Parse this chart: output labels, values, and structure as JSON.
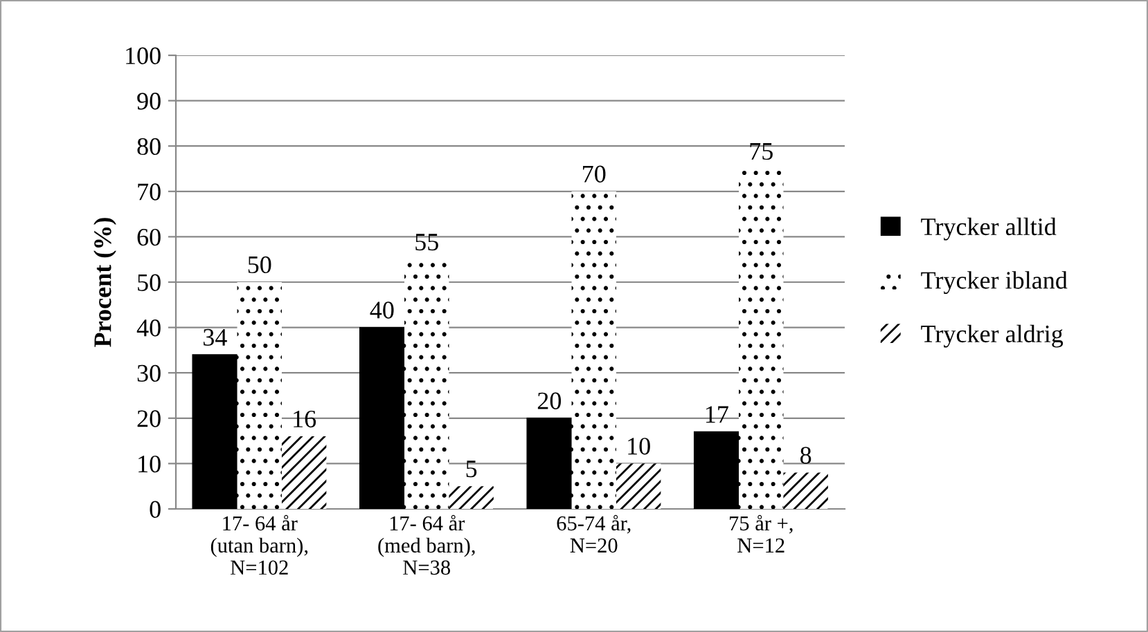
{
  "chart_data": {
    "type": "bar",
    "ylabel": "Procent (%)",
    "categories": [
      "17- 64 år\n(utan barn),\nN=102",
      "17- 64 år\n(med barn),\nN=38",
      "65-74 år,\nN=20",
      "75 år +,\nN=12"
    ],
    "series": [
      {
        "name": "Trycker alltid",
        "color": "#000000",
        "values": [
          34,
          40,
          20,
          17
        ]
      },
      {
        "name": "Trycker ibland",
        "color": "#ffffff",
        "values": [
          50,
          55,
          70,
          75
        ]
      },
      {
        "name": "Trycker aldrig",
        "color": "#ffffff",
        "values": [
          16,
          5,
          10,
          8
        ]
      }
    ],
    "ylim": [
      0,
      100
    ],
    "yticks": [
      0,
      10,
      20,
      30,
      40,
      50,
      60,
      70,
      80,
      90,
      100
    ],
    "grid": "y",
    "legend": "right",
    "data_labels": true
  }
}
